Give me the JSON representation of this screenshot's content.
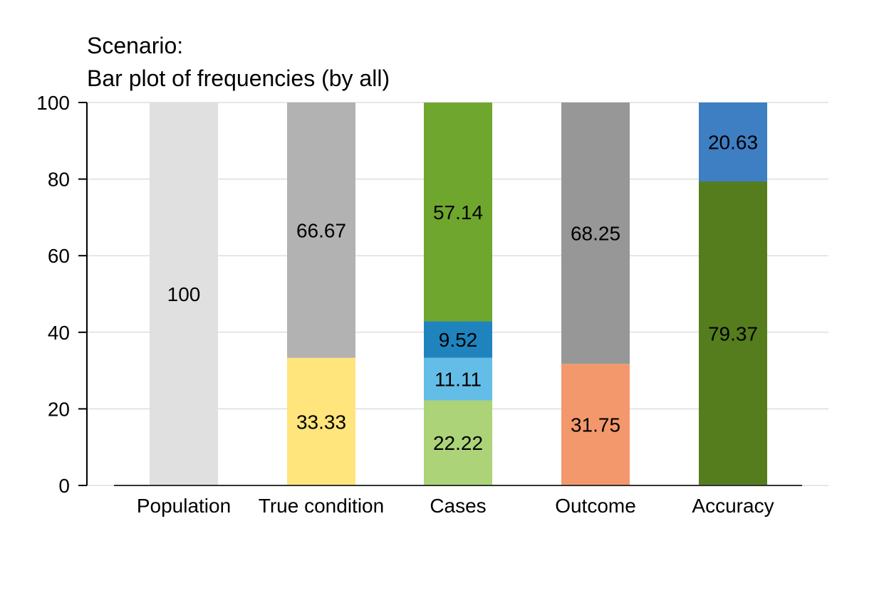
{
  "chart_data": {
    "type": "bar",
    "stacked": true,
    "title_lines": [
      "Scenario:",
      "Bar plot of frequencies (by all)"
    ],
    "xlabel": "",
    "ylabel": "",
    "ylim": [
      0,
      100
    ],
    "yticks": [
      "0",
      "20",
      "40",
      "60",
      "80",
      "100"
    ],
    "grid": "horizontal",
    "categories": [
      "Population",
      "True condition",
      "Cases",
      "Outcome",
      "Accuracy"
    ],
    "bars": [
      {
        "category": "Population",
        "segments": [
          {
            "value": 100,
            "label": "100",
            "color": "#e0e0e0"
          }
        ]
      },
      {
        "category": "True condition",
        "segments": [
          {
            "value": 33.33,
            "label": "33.33",
            "color": "#ffe57c"
          },
          {
            "value": 66.67,
            "label": "66.67",
            "color": "#b2b2b2"
          }
        ]
      },
      {
        "category": "Cases",
        "segments": [
          {
            "value": 22.22,
            "label": "22.22",
            "color": "#acd378"
          },
          {
            "value": 11.11,
            "label": "11.11",
            "color": "#64bde6"
          },
          {
            "value": 9.52,
            "label": "9.52",
            "color": "#1f84bd"
          },
          {
            "value": 57.14,
            "label": "57.14",
            "color": "#6fa62e"
          }
        ]
      },
      {
        "category": "Outcome",
        "segments": [
          {
            "value": 31.75,
            "label": "31.75",
            "color": "#f3986c"
          },
          {
            "value": 68.25,
            "label": "68.25",
            "color": "#979797"
          }
        ]
      },
      {
        "category": "Accuracy",
        "segments": [
          {
            "value": 79.37,
            "label": "79.37",
            "color": "#567d1d"
          },
          {
            "value": 20.63,
            "label": "20.63",
            "color": "#3e7ec3"
          }
        ]
      }
    ]
  }
}
